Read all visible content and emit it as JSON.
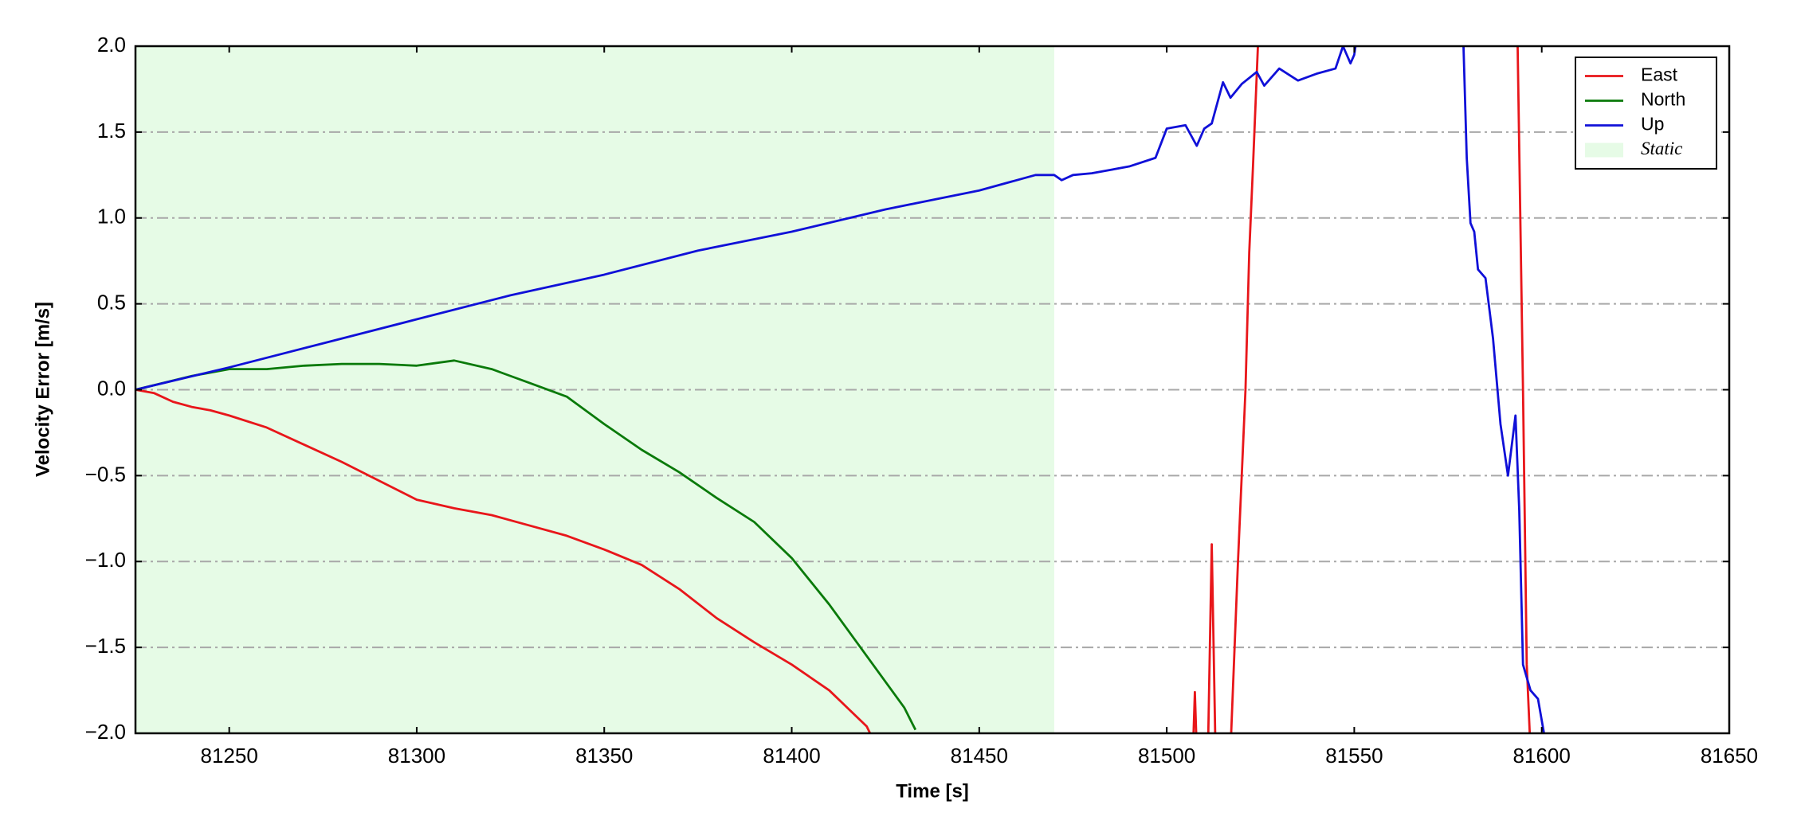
{
  "chart_data": {
    "type": "line",
    "xlabel": "Time [s]",
    "ylabel": "Velocity Error [m/s]",
    "xlim": [
      81225,
      81650
    ],
    "xticks": [
      81250,
      81300,
      81350,
      81400,
      81450,
      81500,
      81550,
      81600,
      81650
    ],
    "ylim": [
      -2,
      2
    ],
    "yticks": [
      {
        "value": -2,
        "label": "−2.0"
      },
      {
        "value": -1.5,
        "label": "−1.5"
      },
      {
        "value": -1,
        "label": "−1.0"
      },
      {
        "value": -0.5,
        "label": "−0.5"
      },
      {
        "value": 0,
        "label": "0.0"
      },
      0.5,
      {
        "value": 1,
        "label": "1.0"
      },
      1.5,
      {
        "value": 2,
        "label": "2.0"
      }
    ],
    "grid": true,
    "legend": "upper right",
    "shade": {
      "name": "Static",
      "color": "#e6fbe6",
      "xrange": [
        81225,
        81470
      ]
    },
    "series": [
      {
        "name": "East",
        "color": "#e8161a",
        "x": [
          81225,
          81230,
          81235,
          81240,
          81245,
          81250,
          81260,
          81270,
          81280,
          81290,
          81300,
          81310,
          81320,
          81330,
          81340,
          81350,
          81360,
          81370,
          81380,
          81390,
          81400,
          81410,
          81420,
          81422,
          81470,
          81507,
          81507.5,
          81508,
          81510,
          81511,
          81512,
          81513,
          81515,
          81517,
          81519,
          81521,
          81522,
          81523,
          81524.5,
          81560,
          81593.5,
          81595,
          81596,
          81597
        ],
        "values": [
          0,
          -0.02,
          -0.07,
          -0.1,
          -0.12,
          -0.15,
          -0.22,
          -0.32,
          -0.42,
          -0.53,
          -0.64,
          -0.69,
          -0.73,
          -0.79,
          -0.85,
          -0.93,
          -1.02,
          -1.16,
          -1.33,
          -1.47,
          -1.6,
          -1.75,
          -1.96,
          -2.05,
          null,
          -2.1,
          -1.76,
          -2.1,
          null,
          -2.1,
          -0.9,
          -2.1,
          null,
          -2.1,
          -1.0,
          0,
          0.8,
          1.3,
          2.1,
          null,
          2.1,
          0,
          -1.6,
          -2.1
        ]
      },
      {
        "name": "North",
        "color": "#0a7a0a",
        "x": [
          81225,
          81240,
          81250,
          81260,
          81270,
          81280,
          81290,
          81300,
          81310,
          81320,
          81330,
          81340,
          81350,
          81360,
          81370,
          81380,
          81390,
          81400,
          81410,
          81420,
          81430,
          81433
        ],
        "values": [
          0,
          0.08,
          0.12,
          0.12,
          0.14,
          0.15,
          0.15,
          0.14,
          0.17,
          0.12,
          0.04,
          -0.04,
          -0.2,
          -0.35,
          -0.48,
          -0.63,
          -0.77,
          -0.98,
          -1.25,
          -1.55,
          -1.85,
          -1.98
        ]
      },
      {
        "name": "Up",
        "color": "#1010d8",
        "x": [
          81225,
          81250,
          81275,
          81300,
          81325,
          81350,
          81375,
          81400,
          81425,
          81450,
          81465,
          81470,
          81472,
          81475,
          81480,
          81490,
          81497,
          81500,
          81505,
          81508,
          81510,
          81512,
          81515,
          81517,
          81520,
          81524,
          81526,
          81530,
          81535,
          81540,
          81545,
          81547,
          81549,
          81550,
          81551,
          81565,
          81579,
          81580,
          81581,
          81582,
          81583,
          81585,
          81587,
          81589,
          81591,
          81593,
          81594,
          81595,
          81597,
          81599,
          81601
        ],
        "values": [
          0,
          0.13,
          0.27,
          0.41,
          0.55,
          0.67,
          0.81,
          0.92,
          1.05,
          1.16,
          1.25,
          1.25,
          1.22,
          1.25,
          1.26,
          1.3,
          1.35,
          1.52,
          1.54,
          1.42,
          1.52,
          1.55,
          1.79,
          1.7,
          1.78,
          1.85,
          1.77,
          1.87,
          1.8,
          1.84,
          1.87,
          2.0,
          1.9,
          1.95,
          2.1,
          null,
          2.1,
          1.35,
          0.97,
          0.92,
          0.7,
          0.65,
          0.3,
          -0.2,
          -0.5,
          -0.15,
          -0.7,
          -1.6,
          -1.75,
          -1.8,
          -2.05
        ]
      }
    ]
  }
}
